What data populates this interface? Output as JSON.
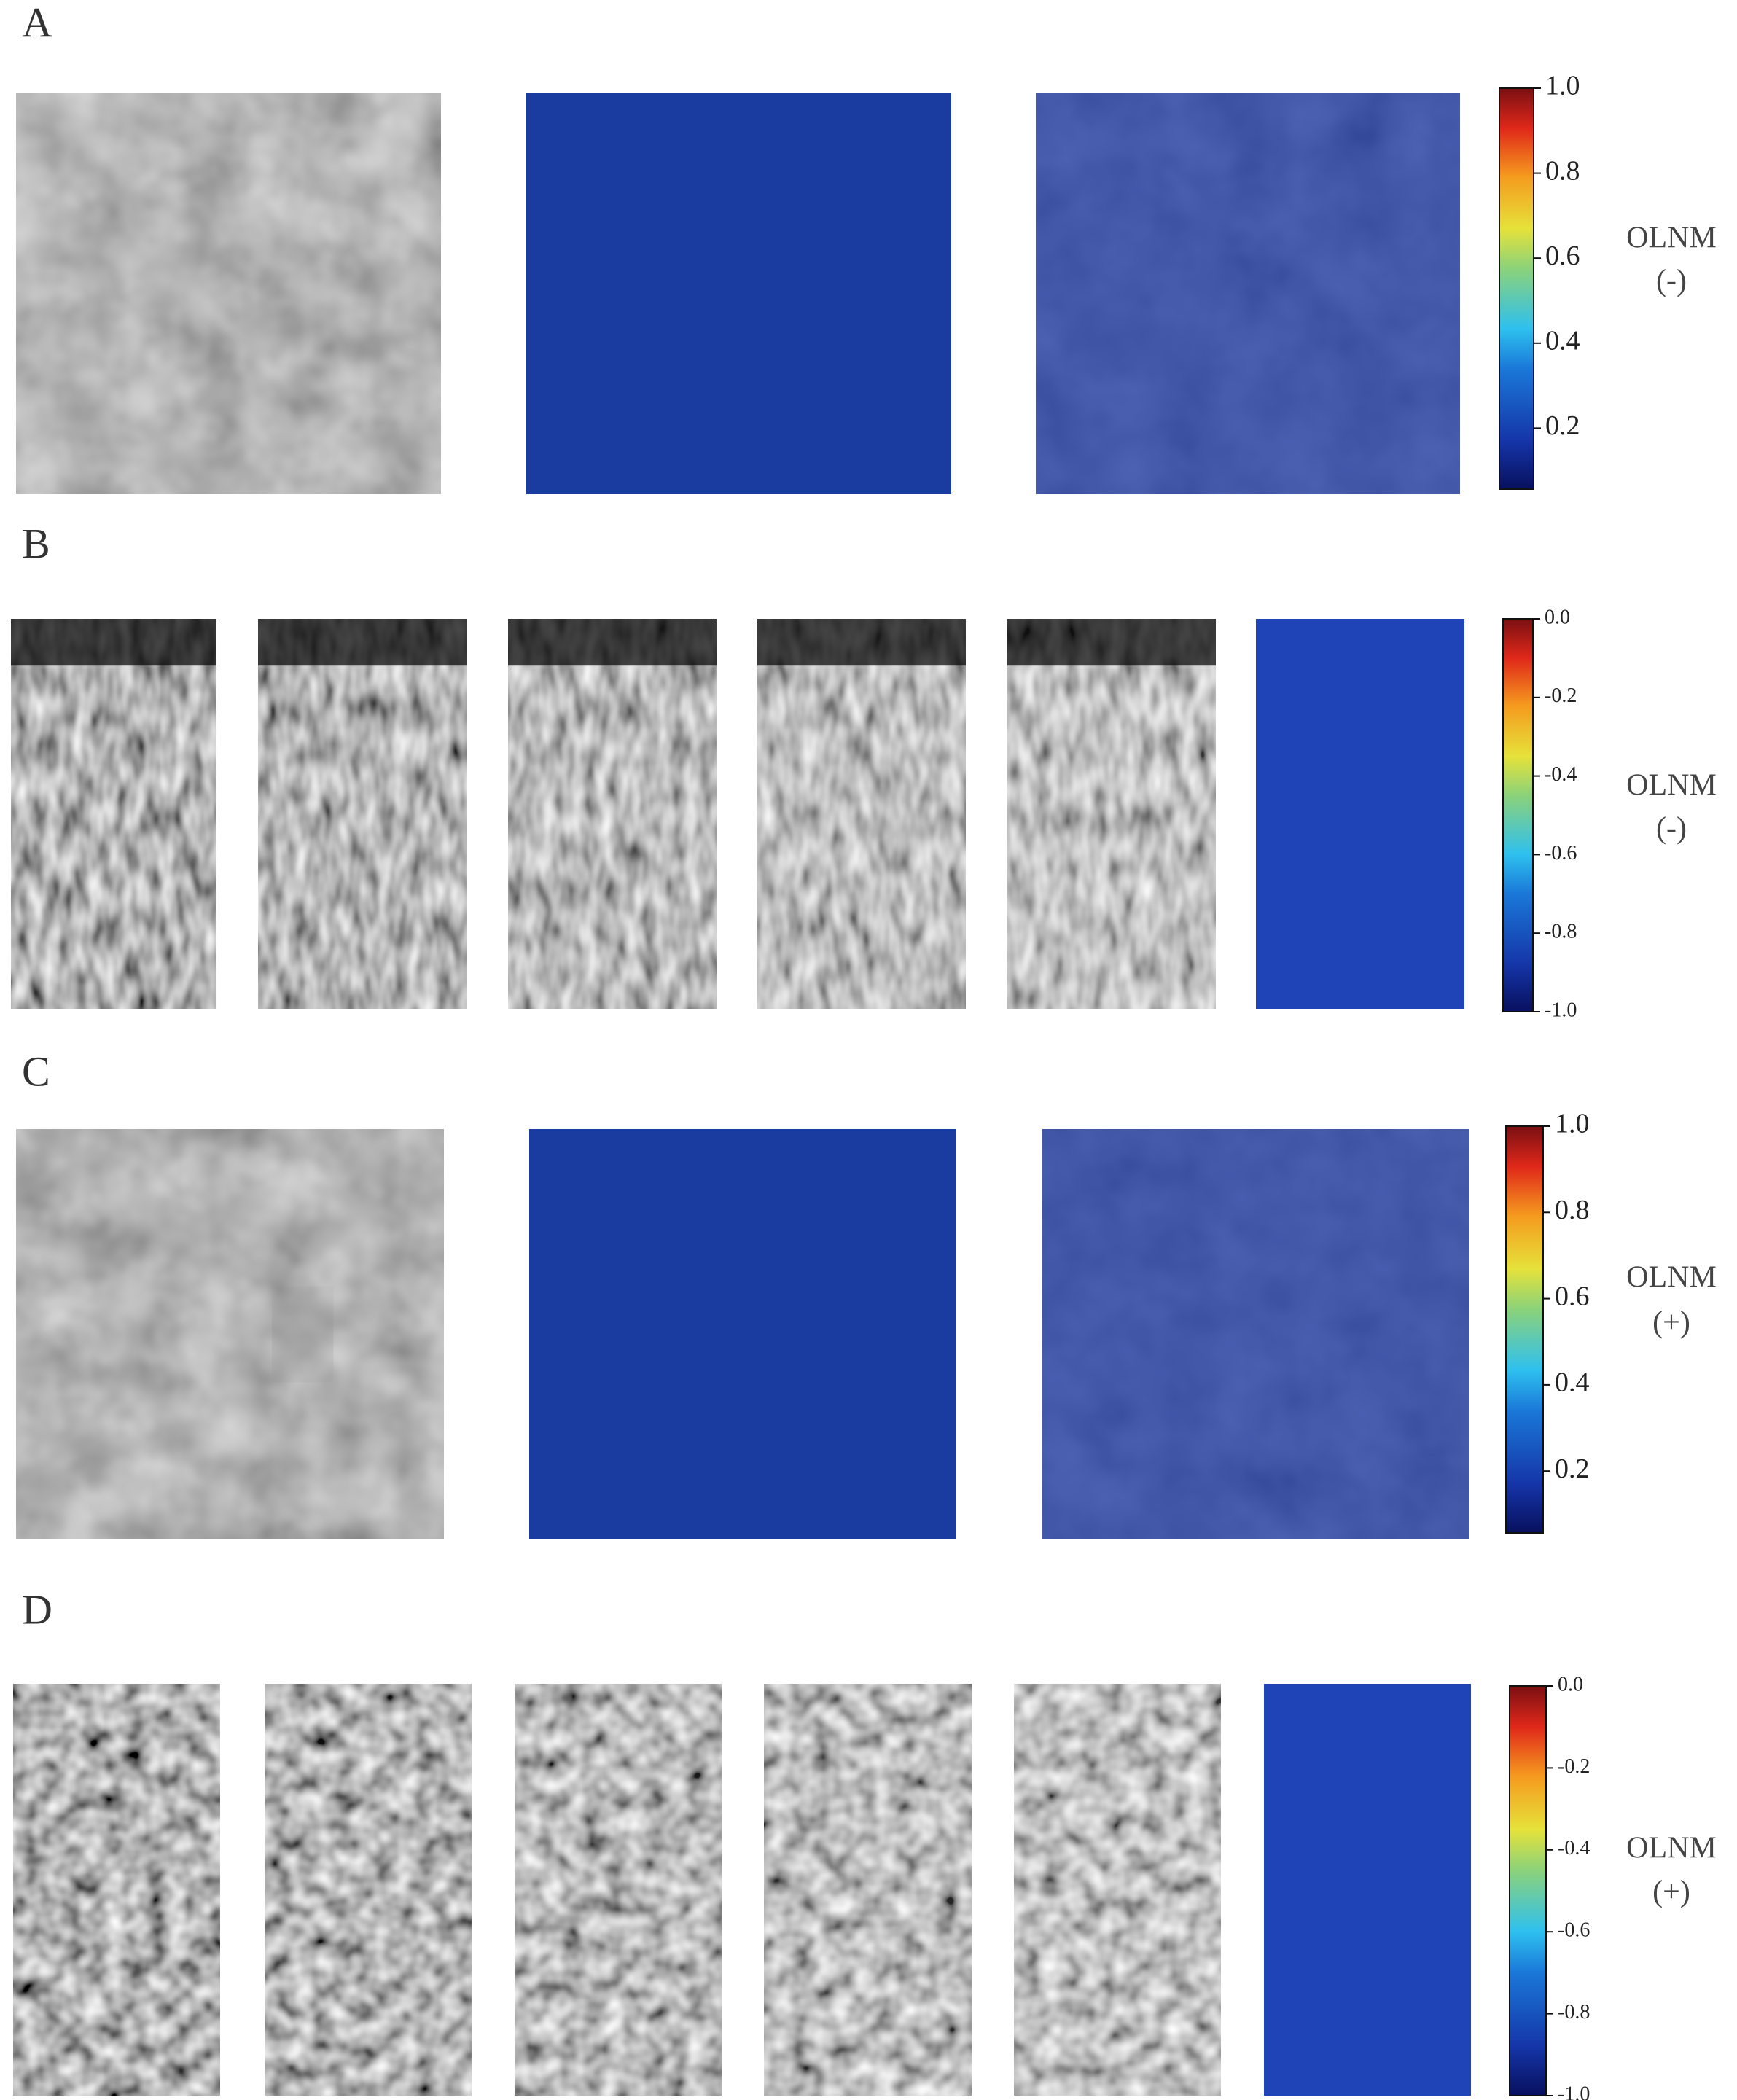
{
  "panels": [
    {
      "label": "A",
      "colorbar_ticks": [
        "1.0",
        "0.8",
        "0.6",
        "0.4",
        "0.2"
      ],
      "class_label": [
        "OLNM",
        "(-)"
      ]
    },
    {
      "label": "B",
      "colorbar_ticks": [
        "0.0",
        "-0.2",
        "-0.4",
        "-0.6",
        "-0.8",
        "-1.0"
      ],
      "class_label": [
        "OLNM",
        "(-)"
      ]
    },
    {
      "label": "C",
      "colorbar_ticks": [
        "1.0",
        "0.8",
        "0.6",
        "0.4",
        "0.2"
      ],
      "class_label": [
        "OLNM",
        "(+)"
      ]
    },
    {
      "label": "D",
      "colorbar_ticks": [
        "0.0",
        "-0.2",
        "-0.4",
        "-0.6",
        "-0.8",
        "-1.0"
      ],
      "class_label": [
        "OLNM",
        "(+)"
      ]
    }
  ]
}
